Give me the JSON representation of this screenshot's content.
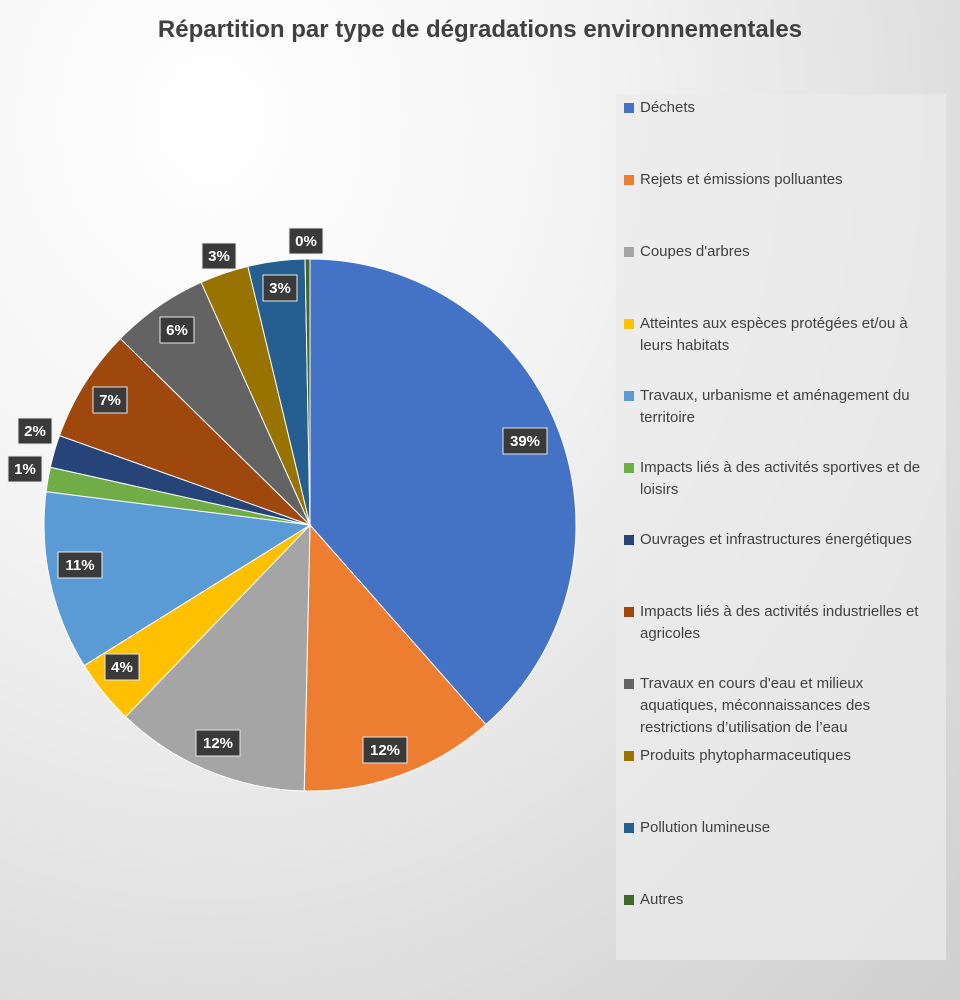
{
  "chart_data": {
    "type": "pie",
    "title": "Répartition par type de dégradations environnementales",
    "legend_position": "right",
    "slices": [
      {
        "label": "Déchets",
        "value": 39,
        "display": "39%",
        "color": "#4472C4"
      },
      {
        "label": "Rejets et émissions polluantes",
        "value": 12,
        "display": "12%",
        "color": "#ED7D31"
      },
      {
        "label": "Coupes d'arbres",
        "value": 12,
        "display": "12%",
        "color": "#A5A5A5"
      },
      {
        "label": "Atteintes aux espèces protégées et/ou à leurs habitats",
        "value": 4,
        "display": "4%",
        "color": "#FFC000"
      },
      {
        "label": "Travaux, urbanisme et aménagement du territoire",
        "value": 11,
        "display": "11%",
        "color": "#5B9BD5"
      },
      {
        "label": "Impacts liés à des activités sportives et de loisirs",
        "value": 1.5,
        "display": "1%",
        "color": "#70AD47"
      },
      {
        "label": "Ouvrages et infrastructures énergétiques",
        "value": 2,
        "display": "2%",
        "color": "#264478"
      },
      {
        "label": "Impacts liés à des activités industrielles et agricoles",
        "value": 7,
        "display": "7%",
        "color": "#9E480E"
      },
      {
        "label": "Travaux en cours d'eau et milieux aquatiques, méconnaissances des restrictions d’utilisation de l’eau",
        "value": 6,
        "display": "6%",
        "color": "#636363"
      },
      {
        "label": "Produits phytopharmaceutiques",
        "value": 3,
        "display": "3%",
        "color": "#997300"
      },
      {
        "label": "Pollution lumineuse",
        "value": 3.5,
        "display": "3%",
        "color": "#255E91"
      },
      {
        "label": "Autres",
        "value": 0.3,
        "display": "0%",
        "color": "#43682B"
      }
    ]
  }
}
